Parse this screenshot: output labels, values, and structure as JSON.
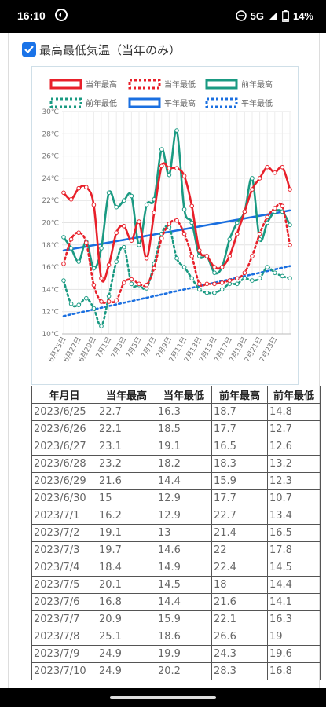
{
  "status_bar": {
    "time": "16:10",
    "network": "5G",
    "battery": "14%"
  },
  "checkbox": {
    "label": "最高最低気温（当年のみ）",
    "checked": true
  },
  "chart_data": {
    "type": "line",
    "y_ticks": [
      "30℃",
      "28℃",
      "26℃",
      "24℃",
      "22℃",
      "20℃",
      "18℃",
      "16℃",
      "14℃",
      "12℃",
      "10℃"
    ],
    "ylim": [
      10,
      30
    ],
    "x_ticks": [
      "6月25日",
      "6月27日",
      "6月29日",
      "7月1日",
      "7月3日",
      "7月5日",
      "7月7日",
      "7月9日",
      "7月11日",
      "7月13日",
      "7月15日",
      "7月17日",
      "7月19日",
      "7月21日",
      "7月23日"
    ],
    "x_count": 31,
    "grid": true,
    "legend_position": "top",
    "series": [
      {
        "name": "当年最高",
        "color": "#e8202a",
        "style": "solid",
        "markers": true,
        "values": [
          22.7,
          22.1,
          23.1,
          23.2,
          21.6,
          15,
          16.2,
          19.1,
          19.7,
          18.4,
          20.1,
          16.8,
          20.9,
          25.1,
          24.9,
          24.9,
          24.2,
          21.5,
          17.5,
          17,
          16,
          16,
          17,
          19,
          21,
          23,
          24,
          25,
          24.5,
          25,
          23
        ]
      },
      {
        "name": "当年最低",
        "color": "#e8202a",
        "style": "dotted",
        "markers": true,
        "values": [
          16.3,
          18.5,
          19.1,
          18.2,
          14.4,
          12.9,
          12.9,
          13,
          14.6,
          14.9,
          14.5,
          14.4,
          15.9,
          18.6,
          19.9,
          20.2,
          19,
          17,
          14.5,
          14.5,
          14.5,
          14.6,
          14.8,
          15,
          15.5,
          17,
          19,
          20.5,
          21.3,
          21.5,
          18
        ]
      },
      {
        "name": "前年最高",
        "color": "#1a9a82",
        "style": "solid",
        "markers": true,
        "values": [
          18.7,
          17.7,
          16.5,
          18.3,
          15.9,
          17.7,
          22.7,
          21.4,
          22,
          22.4,
          18,
          21.6,
          22.1,
          26.6,
          24.3,
          28.3,
          21.2,
          20,
          17,
          17,
          15.5,
          16,
          18.5,
          20,
          21,
          24,
          18.5,
          20,
          21,
          21,
          19.8
        ]
      },
      {
        "name": "前年最低",
        "color": "#1a9a82",
        "style": "dotted",
        "markers": true,
        "values": [
          14.8,
          12.7,
          12.6,
          13.2,
          12.3,
          10.7,
          13.4,
          16.5,
          17.8,
          14.5,
          14.4,
          14.1,
          16.3,
          19,
          19.6,
          16.8,
          16,
          15,
          14,
          13.7,
          13.7,
          14,
          14.5,
          14.5,
          15,
          14.8,
          15,
          16,
          15.5,
          15.2,
          15
        ]
      },
      {
        "name": "平年最高",
        "color": "#1a6fe0",
        "style": "solid",
        "markers": false,
        "values": [
          17.5,
          17.62,
          17.74,
          17.86,
          17.98,
          18.1,
          18.22,
          18.34,
          18.46,
          18.58,
          18.7,
          18.82,
          18.94,
          19.06,
          19.18,
          19.3,
          19.42,
          19.54,
          19.66,
          19.78,
          19.9,
          20.02,
          20.14,
          20.26,
          20.38,
          20.5,
          20.62,
          20.74,
          20.86,
          20.98,
          21.1
        ]
      },
      {
        "name": "平年最低",
        "color": "#1a6fe0",
        "style": "dotted",
        "markers": false,
        "values": [
          11.6,
          11.75,
          11.9,
          12.05,
          12.2,
          12.35,
          12.5,
          12.65,
          12.8,
          12.95,
          13.1,
          13.25,
          13.4,
          13.55,
          13.7,
          13.85,
          14,
          14.15,
          14.3,
          14.45,
          14.6,
          14.75,
          14.9,
          15.05,
          15.2,
          15.35,
          15.5,
          15.65,
          15.8,
          15.95,
          16.1
        ]
      }
    ]
  },
  "table": {
    "headers": [
      "年月日",
      "当年最高",
      "当年最低",
      "前年最高",
      "前年最低"
    ],
    "rows": [
      [
        "2023/6/25",
        "22.7",
        "16.3",
        "18.7",
        "14.8"
      ],
      [
        "2023/6/26",
        "22.1",
        "18.5",
        "17.7",
        "12.7"
      ],
      [
        "2023/6/27",
        "23.1",
        "19.1",
        "16.5",
        "12.6"
      ],
      [
        "2023/6/28",
        "23.2",
        "18.2",
        "18.3",
        "13.2"
      ],
      [
        "2023/6/29",
        "21.6",
        "14.4",
        "15.9",
        "12.3"
      ],
      [
        "2023/6/30",
        "15",
        "12.9",
        "17.7",
        "10.7"
      ],
      [
        "2023/7/1",
        "16.2",
        "12.9",
        "22.7",
        "13.4"
      ],
      [
        "2023/7/2",
        "19.1",
        "13",
        "21.4",
        "16.5"
      ],
      [
        "2023/7/3",
        "19.7",
        "14.6",
        "22",
        "17.8"
      ],
      [
        "2023/7/4",
        "18.4",
        "14.9",
        "22.4",
        "14.5"
      ],
      [
        "2023/7/5",
        "20.1",
        "14.5",
        "18",
        "14.4"
      ],
      [
        "2023/7/6",
        "16.8",
        "14.4",
        "21.6",
        "14.1"
      ],
      [
        "2023/7/7",
        "20.9",
        "15.9",
        "22.1",
        "16.3"
      ],
      [
        "2023/7/8",
        "25.1",
        "18.6",
        "26.6",
        "19"
      ],
      [
        "2023/7/9",
        "24.9",
        "19.9",
        "24.3",
        "19.6"
      ],
      [
        "2023/7/10",
        "24.9",
        "20.2",
        "28.3",
        "16.8"
      ]
    ]
  }
}
